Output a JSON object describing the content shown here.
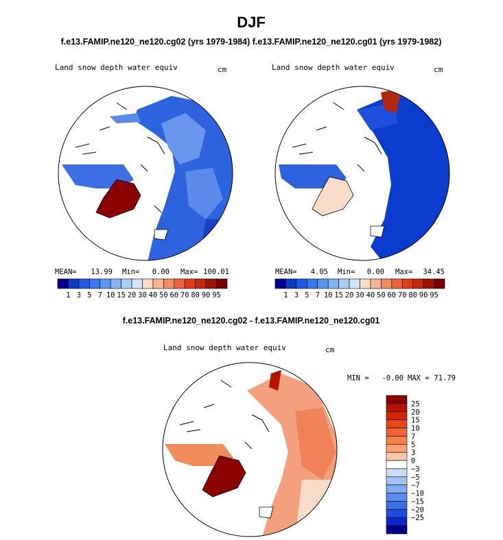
{
  "page": {
    "title": "DJF",
    "top_header": "f.e13.FAMIP.ne120_ne120.cg02 (yrs 1979-1984) f.e13.FAMIP.ne120_ne120.cg01 (yrs 1979-1982)",
    "bottom_header": "f.e13.FAMIP.ne120_ne120.cg02 - f.e13.FAMIP.ne120_ne120.cg01"
  },
  "chart_data": [
    {
      "type": "heatmap",
      "projection": "north polar stereographic",
      "variable": "Land snow depth water equiv",
      "units": "cm",
      "case": "f.e13.FAMIP.ne120_ne120.cg02 (yrs 1979-1984)",
      "stats": {
        "mean_label": "MEAN=",
        "mean": "13.99",
        "min_label": "Min=",
        "min": "0.00",
        "max_label": "Max=",
        "max": "100.01"
      },
      "colorbar": {
        "orientation": "horizontal",
        "tick_labels": [
          "1",
          "3",
          "5",
          "7",
          "10",
          "15",
          "20",
          "30",
          "40",
          "50",
          "60",
          "70",
          "80",
          "90",
          "95"
        ],
        "colors": [
          "#00008c",
          "#0a3cc8",
          "#1e5ae6",
          "#3c78f0",
          "#5a96f0",
          "#82b4f5",
          "#aacdf5",
          "#d2e6fa",
          "#fadcc8",
          "#f5b496",
          "#f08c64",
          "#eb643c",
          "#e63c14",
          "#c8280a",
          "#a01400",
          "#780000"
        ]
      }
    },
    {
      "type": "heatmap",
      "projection": "north polar stereographic",
      "variable": "Land snow depth water equiv",
      "units": "cm",
      "case": "f.e13.FAMIP.ne120_ne120.cg01 (yrs 1979-1982)",
      "stats": {
        "mean_label": "MEAN=",
        "mean": "4.05",
        "min_label": "Min=",
        "min": "0.00",
        "max_label": "Max=",
        "max": "34.45"
      },
      "colorbar": {
        "orientation": "horizontal",
        "tick_labels": [
          "1",
          "3",
          "5",
          "7",
          "10",
          "15",
          "20",
          "30",
          "40",
          "50",
          "60",
          "70",
          "80",
          "90",
          "95"
        ],
        "colors": [
          "#00008c",
          "#0a3cc8",
          "#1e5ae6",
          "#3c78f0",
          "#5a96f0",
          "#82b4f5",
          "#aacdf5",
          "#d2e6fa",
          "#fadcc8",
          "#f5b496",
          "#f08c64",
          "#eb643c",
          "#e63c14",
          "#c8280a",
          "#a01400",
          "#780000"
        ]
      }
    },
    {
      "type": "heatmap",
      "projection": "north polar stereographic",
      "variable": "Land snow depth water equiv",
      "units": "cm",
      "case": "f.e13.FAMIP.ne120_ne120.cg02 - f.e13.FAMIP.ne120_ne120.cg01",
      "stats": {
        "min_label": "MIN =",
        "min": "-0.00",
        "max_label": "MAX =",
        "max": "71.79"
      },
      "colorbar": {
        "orientation": "vertical",
        "tick_labels": [
          "25",
          "20",
          "15",
          "10",
          "7",
          "5",
          "3",
          "0",
          "−3",
          "−5",
          "−7",
          "−10",
          "−15",
          "−20",
          "−25"
        ],
        "colors": [
          "#8c0000",
          "#b41400",
          "#d22800",
          "#e64614",
          "#f06432",
          "#f5824b",
          "#faa073",
          "#fac8a5",
          "#ffffff",
          "#c8dcf5",
          "#a0c3f5",
          "#7daaf0",
          "#5a8cf0",
          "#3c6ee6",
          "#1e4be1",
          "#0a28c8",
          "#00008c"
        ]
      }
    }
  ]
}
